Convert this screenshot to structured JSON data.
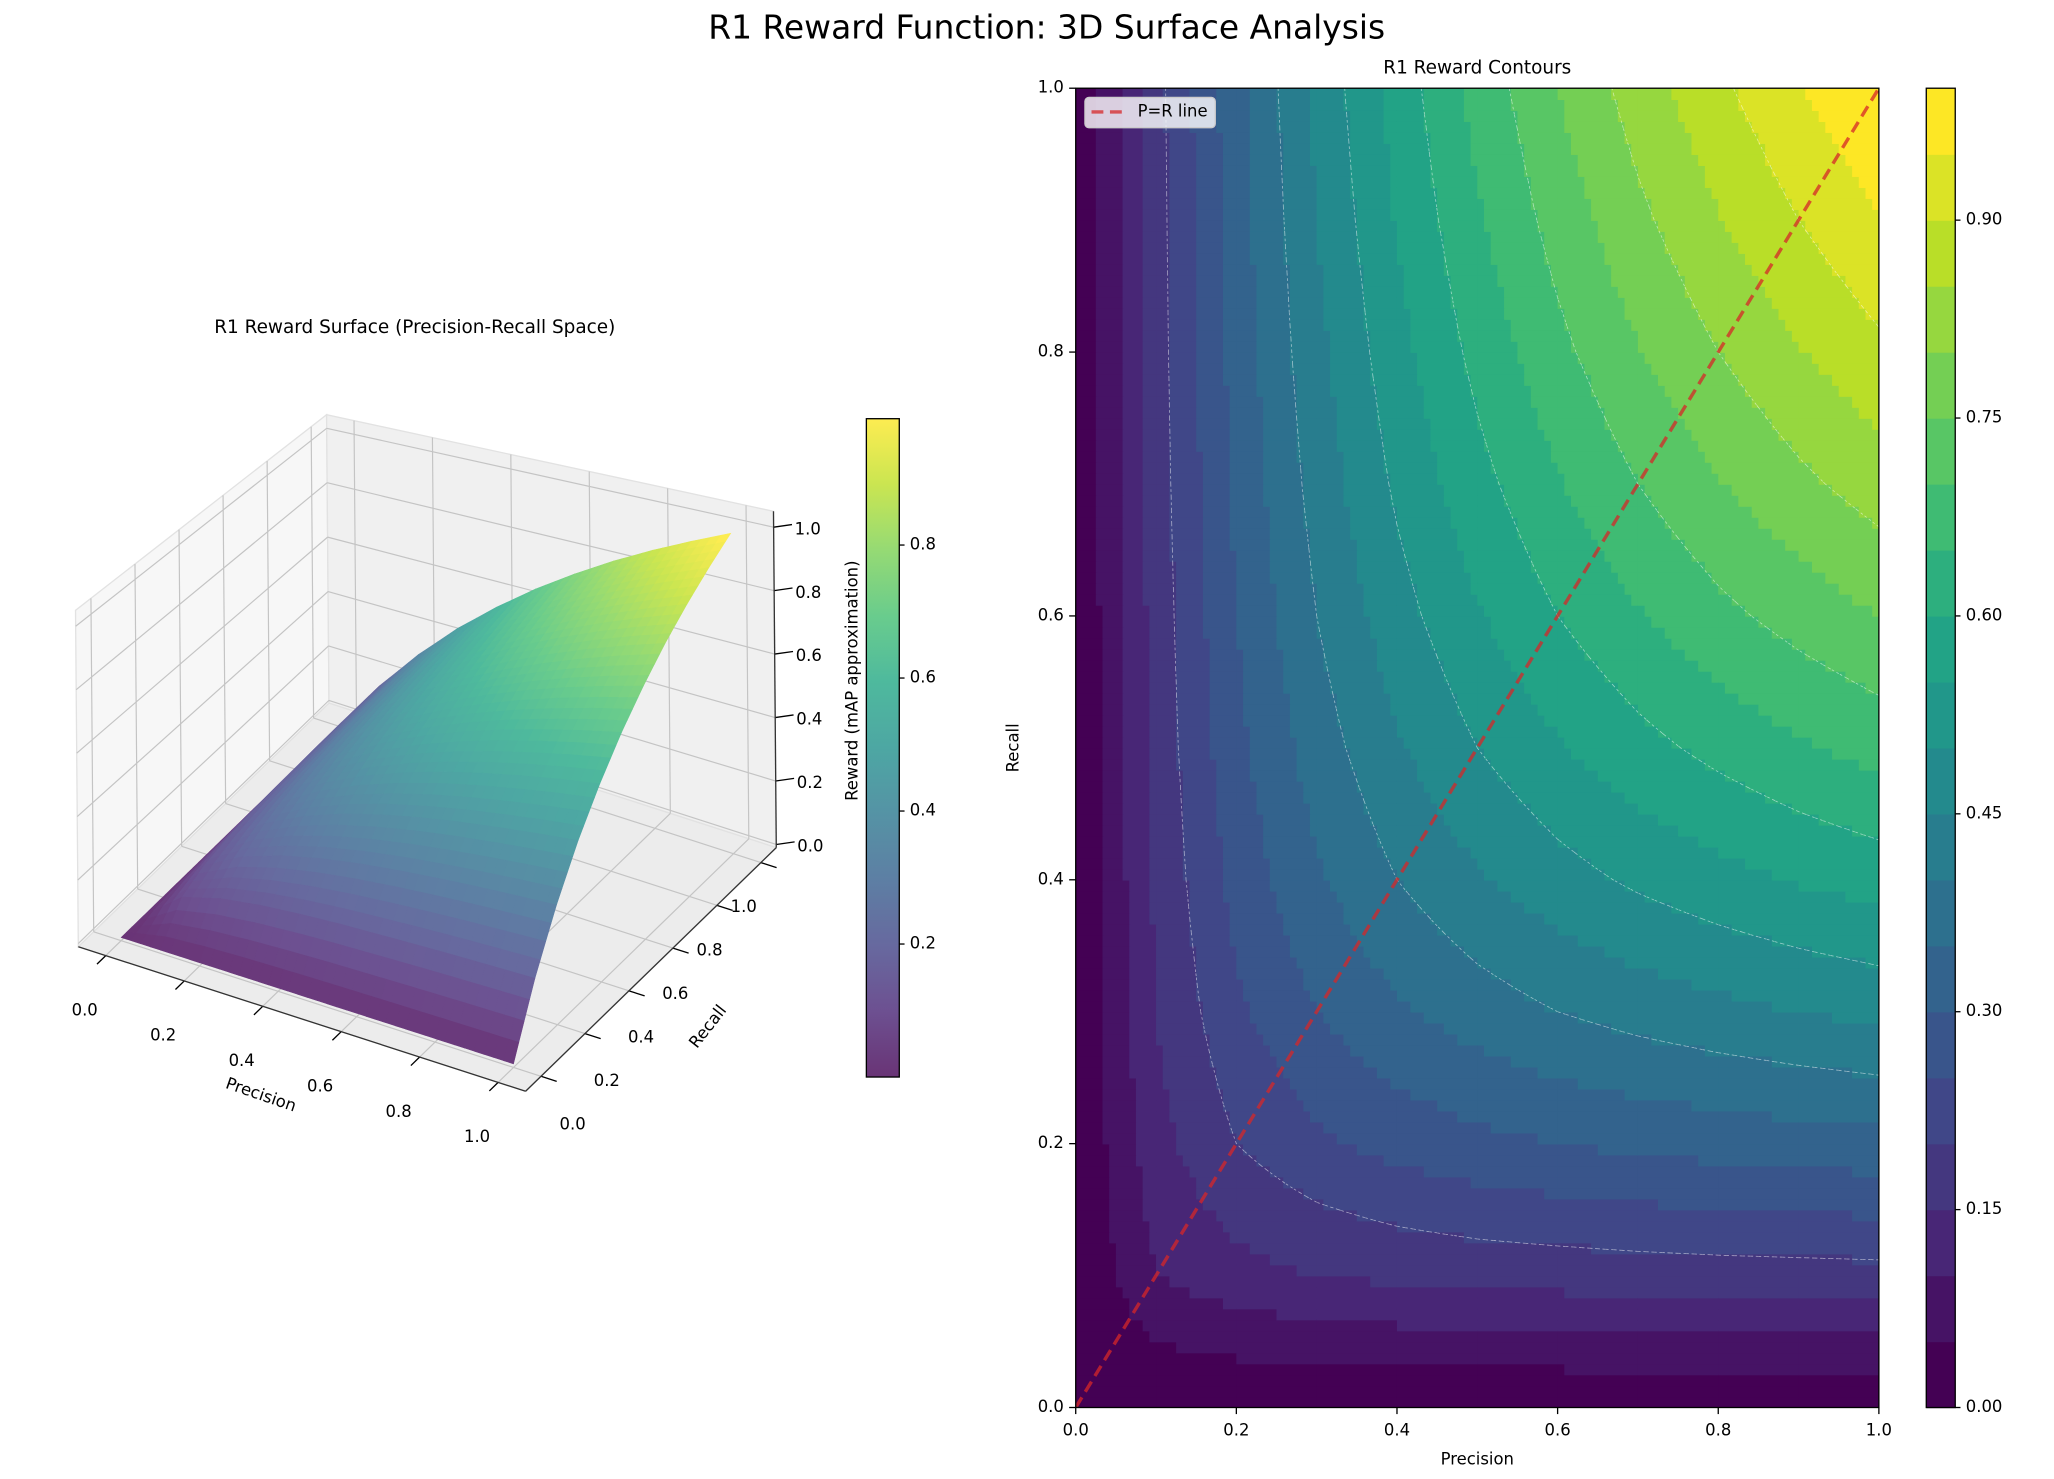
{
  "title": "R1 Reward Function: 3D Surface Analysis",
  "chart_data": [
    {
      "type": "surface3d",
      "title": "R1 Reward Surface (Precision-Recall Space)",
      "xlabel": "Precision",
      "ylabel": "Recall",
      "zlabel": "Reward (mAP approximation)",
      "x": [
        0,
        0.1,
        0.2,
        0.3,
        0.4,
        0.5,
        0.6,
        0.7,
        0.8,
        0.9,
        1
      ],
      "y": [
        0,
        0.1,
        0.2,
        0.3,
        0.4,
        0.5,
        0.6,
        0.7,
        0.8,
        0.9,
        1
      ],
      "z": [
        [
          0,
          0,
          0,
          0,
          0,
          0,
          0,
          0,
          0,
          0,
          0
        ],
        [
          0,
          0.1,
          0.133,
          0.15,
          0.16,
          0.167,
          0.171,
          0.175,
          0.178,
          0.18,
          0.182
        ],
        [
          0,
          0.133,
          0.2,
          0.24,
          0.267,
          0.286,
          0.3,
          0.311,
          0.32,
          0.327,
          0.333
        ],
        [
          0,
          0.15,
          0.24,
          0.3,
          0.343,
          0.375,
          0.4,
          0.42,
          0.436,
          0.45,
          0.462
        ],
        [
          0,
          0.16,
          0.267,
          0.343,
          0.4,
          0.444,
          0.48,
          0.509,
          0.533,
          0.554,
          0.571
        ],
        [
          0,
          0.167,
          0.286,
          0.375,
          0.444,
          0.5,
          0.545,
          0.583,
          0.615,
          0.643,
          0.667
        ],
        [
          0,
          0.171,
          0.3,
          0.4,
          0.48,
          0.545,
          0.6,
          0.646,
          0.686,
          0.72,
          0.75
        ],
        [
          0,
          0.175,
          0.311,
          0.42,
          0.509,
          0.583,
          0.646,
          0.7,
          0.747,
          0.788,
          0.824
        ],
        [
          0,
          0.178,
          0.32,
          0.436,
          0.533,
          0.615,
          0.686,
          0.747,
          0.8,
          0.847,
          0.889
        ],
        [
          0,
          0.18,
          0.327,
          0.45,
          0.554,
          0.643,
          0.72,
          0.788,
          0.847,
          0.9,
          0.947
        ],
        [
          0,
          0.182,
          0.333,
          0.462,
          0.571,
          0.667,
          0.75,
          0.824,
          0.889,
          0.947,
          1
        ]
      ],
      "xlim": [
        0,
        1
      ],
      "ylim": [
        0,
        1
      ],
      "zlim": [
        0,
        1
      ],
      "xticks": [
        {
          "value": 0,
          "label": "0.0"
        },
        0.2,
        0.4,
        0.6,
        0.8,
        {
          "value": 1,
          "label": "1.0"
        }
      ],
      "yticks": [
        {
          "value": 0,
          "label": "0.0"
        },
        0.2,
        0.4,
        0.6,
        0.8,
        {
          "value": 1,
          "label": "1.0"
        }
      ],
      "zticks": [
        {
          "value": 0,
          "label": "0.0"
        },
        0.2,
        0.4,
        0.6,
        0.8,
        {
          "value": 1,
          "label": "1.0"
        }
      ],
      "colormap": "viridis",
      "alpha": 0.8,
      "colorbar": {
        "lim": [
          0,
          0.99
        ],
        "ticks": [
          0.2,
          0.4,
          0.6,
          0.8
        ]
      }
    },
    {
      "type": "contourf",
      "title": "R1 Reward Contours",
      "xlabel": "Precision",
      "ylabel": "Recall",
      "x": [
        0,
        0.1,
        0.2,
        0.3,
        0.4,
        0.5,
        0.6,
        0.7,
        0.8,
        0.9,
        1
      ],
      "y": [
        0,
        0.1,
        0.2,
        0.3,
        0.4,
        0.5,
        0.6,
        0.7,
        0.8,
        0.9,
        1
      ],
      "z": [
        [
          0,
          0,
          0,
          0,
          0,
          0,
          0,
          0,
          0,
          0,
          0
        ],
        [
          0,
          0.1,
          0.133,
          0.15,
          0.16,
          0.167,
          0.171,
          0.175,
          0.178,
          0.18,
          0.182
        ],
        [
          0,
          0.133,
          0.2,
          0.24,
          0.267,
          0.286,
          0.3,
          0.311,
          0.32,
          0.327,
          0.333
        ],
        [
          0,
          0.15,
          0.24,
          0.3,
          0.343,
          0.375,
          0.4,
          0.42,
          0.436,
          0.45,
          0.462
        ],
        [
          0,
          0.16,
          0.267,
          0.343,
          0.4,
          0.444,
          0.48,
          0.509,
          0.533,
          0.554,
          0.571
        ],
        [
          0,
          0.167,
          0.286,
          0.375,
          0.444,
          0.5,
          0.545,
          0.583,
          0.615,
          0.643,
          0.667
        ],
        [
          0,
          0.171,
          0.3,
          0.4,
          0.48,
          0.545,
          0.6,
          0.646,
          0.686,
          0.72,
          0.75
        ],
        [
          0,
          0.175,
          0.311,
          0.42,
          0.509,
          0.583,
          0.646,
          0.7,
          0.747,
          0.788,
          0.824
        ],
        [
          0,
          0.178,
          0.32,
          0.436,
          0.533,
          0.615,
          0.686,
          0.747,
          0.8,
          0.847,
          0.889
        ],
        [
          0,
          0.18,
          0.327,
          0.45,
          0.554,
          0.643,
          0.72,
          0.788,
          0.847,
          0.9,
          0.947
        ],
        [
          0,
          0.182,
          0.333,
          0.462,
          0.571,
          0.667,
          0.75,
          0.824,
          0.889,
          0.947,
          1
        ]
      ],
      "levels": [
        0,
        0.05,
        0.1,
        0.15,
        0.2,
        0.25,
        0.3,
        0.35,
        0.4,
        0.45,
        0.5,
        0.55,
        0.6,
        0.65,
        0.7,
        0.75,
        0.8,
        0.85,
        0.9,
        0.95,
        1
      ],
      "contour_lines": [
        0.2,
        0.4,
        0.5,
        0.6,
        0.7,
        0.8,
        0.9
      ],
      "line_color": "#ffffff",
      "xlim": [
        0,
        1
      ],
      "ylim": [
        0,
        1
      ],
      "xticks": [
        {
          "value": 0,
          "label": "0.0"
        },
        0.2,
        0.4,
        0.6,
        0.8,
        {
          "value": 1,
          "label": "1.0"
        }
      ],
      "yticks": [
        {
          "value": 0,
          "label": "0.0"
        },
        0.2,
        0.4,
        0.6,
        0.8,
        {
          "value": 1,
          "label": "1.0"
        }
      ],
      "colormap": "viridis",
      "colorbar": {
        "ticks": [
          {
            "value": 0,
            "label": "0.00"
          },
          0.15,
          {
            "value": 0.3,
            "label": "0.30"
          },
          0.45,
          {
            "value": 0.6,
            "label": "0.60"
          },
          0.75,
          {
            "value": 0.9,
            "label": "0.90"
          }
        ]
      },
      "series": [
        {
          "name": "P=R line",
          "color": "#d62728",
          "x": [
            0,
            1
          ],
          "values": [
            0,
            1
          ]
        }
      ],
      "legend": "upper left"
    }
  ]
}
